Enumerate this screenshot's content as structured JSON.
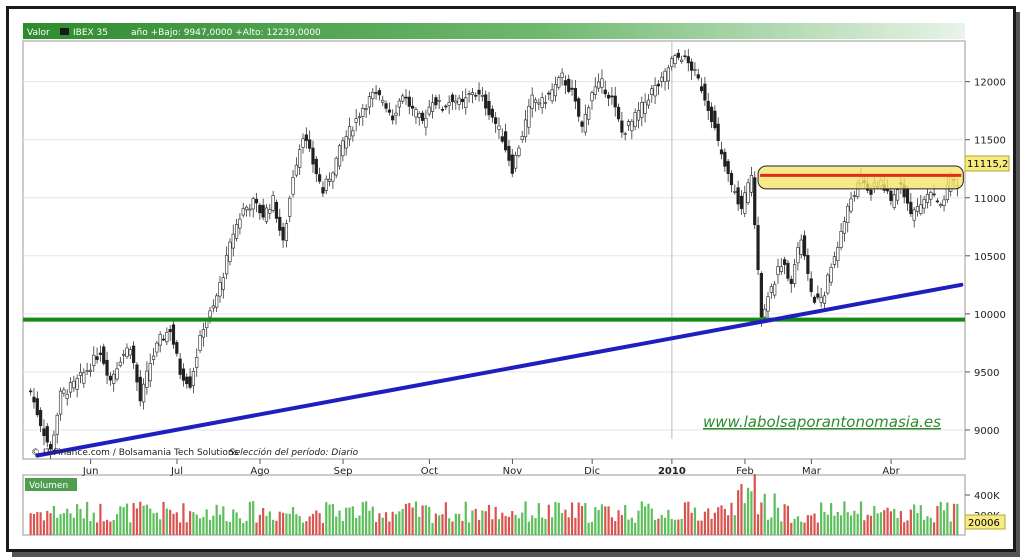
{
  "header": {
    "valor_label": "Valor",
    "symbol": "IBEX 35",
    "info": "año +Bajo: 9947,0000 +Alto: 12239,0000"
  },
  "footer": {
    "credit": "© IT-Finance.com / Bolsamania Tech Solutions",
    "period": "Selección del período: Diario"
  },
  "watermark": "www.labolsaporantonomasia.es",
  "price_box": "11115,2",
  "volume": {
    "label": "Volumen",
    "ticks": [
      "400K",
      "200K"
    ],
    "last_value": "20006"
  },
  "colors": {
    "header_green": "#2e8b2e",
    "up": "#2d7a2d",
    "down": "#c0392b",
    "trendline": "#1f1fbf",
    "support": "#138a13",
    "resistance_fill": "#f3e36a",
    "resistance_line": "#e52a1a",
    "watermark": "#2e8b2e"
  },
  "chart_data": {
    "type": "candlestick",
    "title": "IBEX 35",
    "y_ticks": [
      9000,
      9500,
      10000,
      10500,
      11000,
      11500,
      12000
    ],
    "ylim": [
      8750,
      12350
    ],
    "x_labels": [
      "Jun",
      "Jul",
      "Ago",
      "Sep",
      "Oct",
      "Nov",
      "Dic",
      "2010",
      "Feb",
      "Mar",
      "Abr"
    ],
    "period_low": 9947,
    "period_high": 12239,
    "last_price": 11115.2,
    "support_level": 9950,
    "resistance_band": [
      11120,
      11230
    ],
    "trendline": {
      "start": 8780,
      "end": 10250
    },
    "close_path": [
      [
        0,
        9330
      ],
      [
        3,
        9060
      ],
      [
        6,
        8820
      ],
      [
        9,
        9300
      ],
      [
        13,
        9390
      ],
      [
        17,
        9520
      ],
      [
        21,
        9680
      ],
      [
        24,
        9430
      ],
      [
        27,
        9620
      ],
      [
        30,
        9730
      ],
      [
        33,
        9250
      ],
      [
        36,
        9580
      ],
      [
        39,
        9780
      ],
      [
        42,
        9870
      ],
      [
        45,
        9500
      ],
      [
        48,
        9400
      ],
      [
        52,
        9900
      ],
      [
        55,
        10050
      ],
      [
        58,
        10350
      ],
      [
        61,
        10700
      ],
      [
        64,
        10900
      ],
      [
        67,
        10960
      ],
      [
        70,
        10850
      ],
      [
        73,
        10980
      ],
      [
        76,
        10600
      ],
      [
        79,
        11200
      ],
      [
        82,
        11550
      ],
      [
        85,
        11300
      ],
      [
        88,
        11050
      ],
      [
        91,
        11250
      ],
      [
        94,
        11480
      ],
      [
        97,
        11620
      ],
      [
        100,
        11780
      ],
      [
        103,
        11880
      ],
      [
        106,
        11850
      ],
      [
        109,
        11700
      ],
      [
        112,
        11900
      ],
      [
        115,
        11750
      ],
      [
        118,
        11650
      ],
      [
        121,
        11850
      ],
      [
        124,
        11780
      ],
      [
        127,
        11860
      ],
      [
        130,
        11800
      ],
      [
        133,
        11920
      ],
      [
        136,
        11850
      ],
      [
        139,
        11700
      ],
      [
        142,
        11520
      ],
      [
        145,
        11250
      ],
      [
        148,
        11550
      ],
      [
        151,
        11850
      ],
      [
        154,
        11820
      ],
      [
        157,
        11920
      ],
      [
        160,
        12040
      ],
      [
        163,
        11900
      ],
      [
        166,
        11600
      ],
      [
        169,
        11920
      ],
      [
        172,
        11980
      ],
      [
        175,
        11850
      ],
      [
        178,
        11560
      ],
      [
        181,
        11650
      ],
      [
        184,
        11780
      ],
      [
        187,
        11920
      ],
      [
        190,
        12000
      ],
      [
        193,
        12180
      ],
      [
        196,
        12220
      ],
      [
        199,
        12120
      ],
      [
        202,
        11950
      ],
      [
        205,
        11700
      ],
      [
        208,
        11350
      ],
      [
        211,
        11100
      ],
      [
        214,
        10900
      ],
      [
        217,
        11200
      ],
      [
        220,
        10000
      ],
      [
        223,
        10200
      ],
      [
        226,
        10450
      ],
      [
        229,
        10300
      ],
      [
        232,
        10650
      ],
      [
        235,
        10150
      ],
      [
        238,
        10100
      ],
      [
        241,
        10400
      ],
      [
        244,
        10700
      ],
      [
        247,
        11000
      ],
      [
        250,
        11150
      ],
      [
        253,
        11050
      ],
      [
        256,
        11150
      ],
      [
        259,
        10950
      ],
      [
        262,
        11150
      ],
      [
        265,
        10850
      ],
      [
        268,
        10950
      ],
      [
        271,
        11050
      ],
      [
        274,
        10900
      ],
      [
        277,
        11150
      ],
      [
        279,
        11115
      ]
    ],
    "volume_scale_max": 600000
  }
}
